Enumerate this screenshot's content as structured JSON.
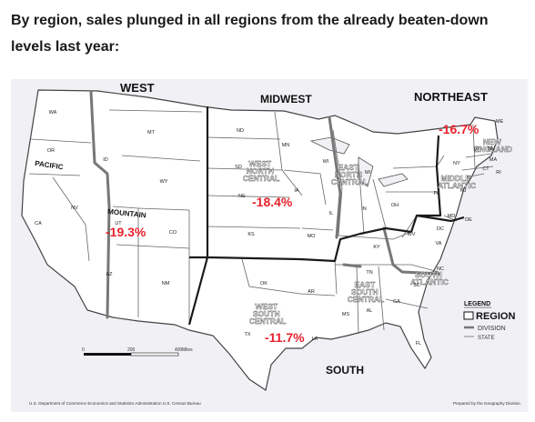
{
  "headline": "By region, sales plunged in all regions from the already beaten-down levels last year:",
  "map": {
    "regions": {
      "west": "WEST",
      "midwest": "MIDWEST",
      "northeast": "NORTHEAST",
      "south": "SOUTH"
    },
    "divisions": {
      "pacific": "PACIFIC",
      "mountain": "MOUNTAIN",
      "west_north_central": [
        "WEST",
        "NORTH",
        "CENTRAL"
      ],
      "east_north_central": [
        "EAST",
        "NORTH",
        "CENTRAL"
      ],
      "new_england": [
        "NEW",
        "ENGLAND"
      ],
      "middle_atlantic": [
        "MIDDLE",
        "ATLANTIC"
      ],
      "south_atlantic": [
        "SOUTH",
        "ATLANTIC"
      ],
      "east_south_central": [
        "EAST",
        "SOUTH",
        "CENTRAL"
      ],
      "west_south_central": [
        "WEST",
        "SOUTH",
        "CENTRAL"
      ]
    },
    "states": [
      "WA",
      "OR",
      "CA",
      "ID",
      "NV",
      "MT",
      "WY",
      "UT",
      "AZ",
      "CO",
      "NM",
      "ND",
      "SD",
      "NE",
      "KS",
      "OK",
      "TX",
      "MN",
      "IA",
      "MO",
      "AR",
      "LA",
      "WI",
      "IL",
      "MI",
      "IN",
      "OH",
      "KY",
      "TN",
      "MS",
      "AL",
      "GA",
      "FL",
      "SC",
      "NC",
      "VA",
      "WV",
      "PA",
      "NY",
      "ME",
      "VT",
      "NH",
      "MA",
      "CT",
      "RI",
      "NJ",
      "DE",
      "MD",
      "DC"
    ],
    "sales_changes": {
      "west": "-19.3%",
      "midwest": "-18.4%",
      "northeast": "-16.7%",
      "south": "-11.7%"
    },
    "legend": {
      "title": "LEGEND",
      "region": "REGION",
      "division": "DIVISION",
      "state": "STATE"
    },
    "scale": {
      "ticks": [
        "0",
        "200",
        "400"
      ],
      "unit": "Miles"
    },
    "credit_left": "U.S. Department of Commerce Economics and Statistics Administration U.S. Census Bureau",
    "credit_right": "Prepared by the Geography Division",
    "colors": {
      "background": "#f1f1f5",
      "state_fill": "#ffffff",
      "state_border": "#555555",
      "division_border": "#777777",
      "region_border": "#1a1a1a",
      "highlight": "#e8232e"
    }
  }
}
